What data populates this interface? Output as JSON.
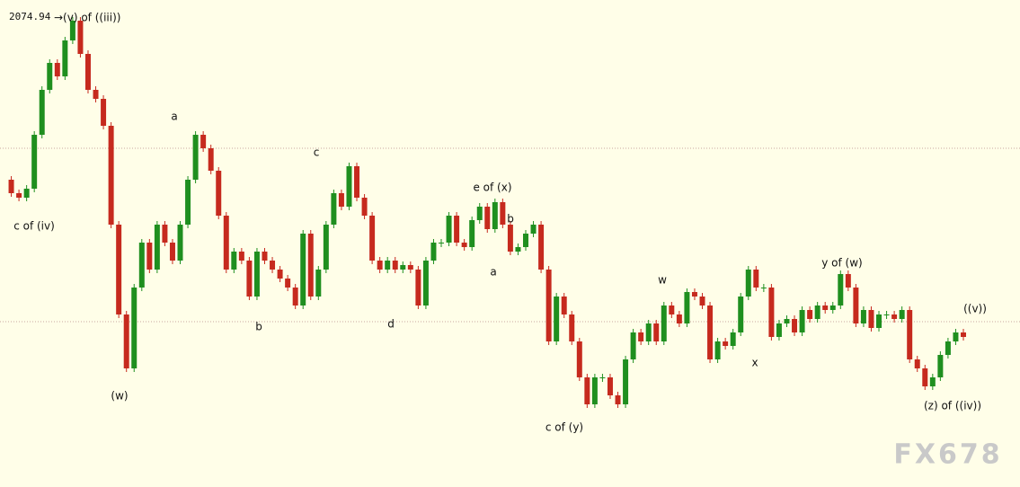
{
  "chart_data": {
    "type": "candlestick",
    "price_label": "2074.94",
    "peak_label": "→(v) of ((iii))",
    "watermark": "FX678",
    "up_color": "#1f8f1f",
    "down_color": "#c62a1e",
    "ylim": [
      2023,
      2077.2
    ],
    "grid_lines": [
      2060.7,
      2041.4
    ],
    "annotations": [
      "c of (iv)",
      "(w)",
      "a",
      "b",
      "c",
      "d",
      "e of (x)",
      "b",
      "a",
      "c of (y)",
      "w",
      "x",
      "y of (w)",
      "((v))",
      "(z) of ((iv))"
    ],
    "values": [
      2057.2,
      2055.7,
      2055.2,
      2056.2,
      2062.2,
      2067.2,
      2070.2,
      2068.7,
      2072.7,
      2074.9,
      2071.2,
      2067.2,
      2066.2,
      2063.2,
      2052.2,
      2042.2,
      2036.2,
      2045.2,
      2050.2,
      2047.2,
      2052.2,
      2050.2,
      2048.2,
      2052.2,
      2057.2,
      2062.2,
      2060.7,
      2058.2,
      2053.2,
      2047.2,
      2049.2,
      2048.2,
      2044.2,
      2049.2,
      2048.2,
      2047.2,
      2046.2,
      2045.2,
      2043.2,
      2051.2,
      2044.2,
      2047.2,
      2052.2,
      2055.7,
      2054.2,
      2058.7,
      2055.2,
      2053.2,
      2048.2,
      2047.2,
      2048.2,
      2047.2,
      2047.7,
      2047.2,
      2043.2,
      2048.2,
      2050.2,
      2050.2,
      2053.2,
      2050.2,
      2049.7,
      2052.7,
      2054.2,
      2051.7,
      2054.7,
      2052.2,
      2049.2,
      2049.7,
      2051.2,
      2052.2,
      2047.2,
      2039.2,
      2044.2,
      2042.2,
      2039.2,
      2035.2,
      2032.2,
      2035.2,
      2035.2,
      2033.2,
      2032.2,
      2037.2,
      2040.2,
      2039.2,
      2041.2,
      2039.2,
      2043.2,
      2042.2,
      2041.2,
      2044.7,
      2044.2,
      2043.2,
      2037.2,
      2039.2,
      2038.7,
      2040.2,
      2044.2,
      2047.2,
      2045.2,
      2045.2,
      2039.7,
      2041.2,
      2041.7,
      2040.2,
      2042.7,
      2041.7,
      2043.2,
      2042.7,
      2043.2,
      2046.7,
      2045.2,
      2041.2,
      2042.7,
      2040.7,
      2042.2,
      2042.2,
      2041.7,
      2042.7,
      2037.2,
      2036.2,
      2034.2,
      2035.2,
      2037.7,
      2039.2,
      2040.2,
      2039.7
    ]
  }
}
